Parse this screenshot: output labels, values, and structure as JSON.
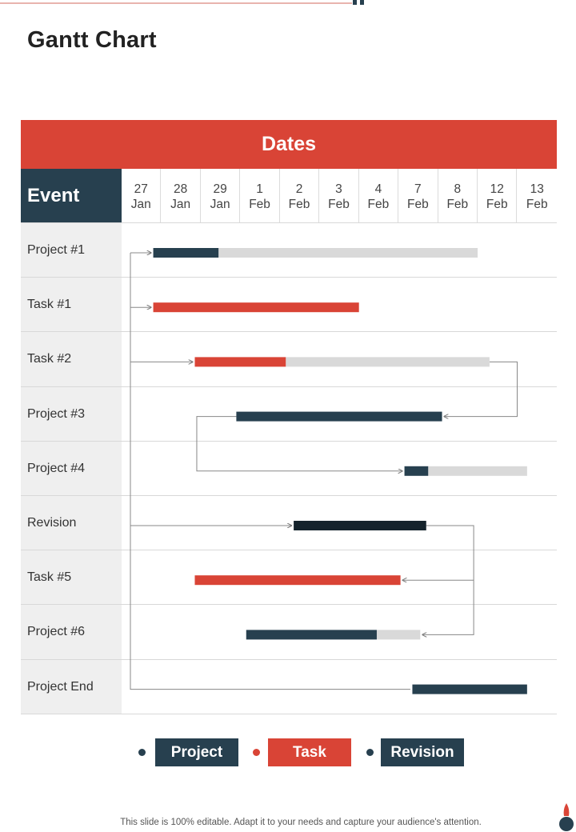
{
  "title": "Gantt Chart",
  "footer": "This slide is 100% editable. Adapt it to your needs and capture your audience's attention.",
  "colors": {
    "project": "#27404f",
    "task": "#d94436",
    "revision": "#15232c",
    "remaining": "#d9d9d9",
    "accent": "#d94436"
  },
  "chart_data": {
    "type": "gantt",
    "header": "Dates",
    "row_header": "Event",
    "columns": [
      [
        "27",
        "Jan"
      ],
      [
        "28",
        "Jan"
      ],
      [
        "29",
        "Jan"
      ],
      [
        "1",
        "Feb"
      ],
      [
        "2",
        "Feb"
      ],
      [
        "3",
        "Feb"
      ],
      [
        "4",
        "Feb"
      ],
      [
        "7",
        "Feb"
      ],
      [
        "8",
        "Feb"
      ],
      [
        "12",
        "Feb"
      ],
      [
        "13",
        "Feb"
      ]
    ],
    "rows": [
      {
        "label": "Project #1",
        "kind": "project",
        "start": 0.8,
        "done_end": 2.45,
        "end": 9.0
      },
      {
        "label": "Task #1",
        "kind": "task",
        "start": 0.8,
        "done_end": 6.0,
        "end": 6.0
      },
      {
        "label": "Task #2",
        "kind": "task",
        "start": 1.85,
        "done_end": 4.15,
        "end": 9.3
      },
      {
        "label": "Project #3",
        "kind": "project",
        "start": 2.9,
        "done_end": 8.1,
        "end": 8.1
      },
      {
        "label": "Project #4",
        "kind": "project",
        "start": 7.15,
        "done_end": 7.75,
        "end": 10.25
      },
      {
        "label": "Revision",
        "kind": "revision",
        "start": 4.35,
        "done_end": 7.7,
        "end": 7.7
      },
      {
        "label": "Task #5",
        "kind": "task",
        "start": 1.85,
        "done_end": 7.05,
        "end": 7.05
      },
      {
        "label": "Project #6",
        "kind": "project",
        "start": 3.15,
        "done_end": 6.45,
        "end": 7.55
      },
      {
        "label": "Project End",
        "kind": "project",
        "start": 7.35,
        "done_end": 10.25,
        "end": 10.25
      }
    ],
    "legend": [
      {
        "label": "Project",
        "kind": "project"
      },
      {
        "label": "Task",
        "kind": "task"
      },
      {
        "label": "Revision",
        "kind": "revision"
      }
    ]
  }
}
